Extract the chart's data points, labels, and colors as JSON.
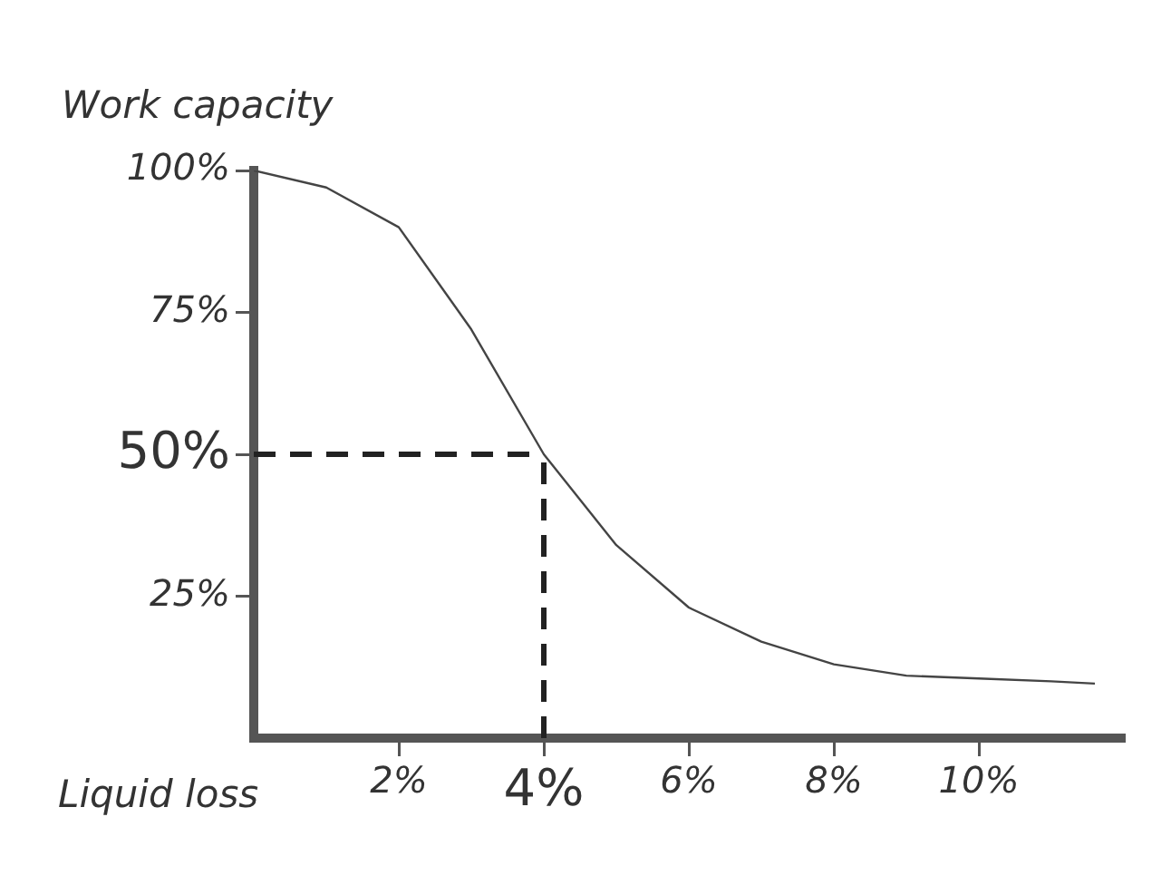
{
  "chart_data": {
    "type": "line",
    "xlabel": "Liquid loss",
    "ylabel": "Work capacity",
    "x": [
      0,
      1,
      2,
      3,
      4,
      5,
      6,
      7,
      8,
      9,
      10,
      11,
      11.6
    ],
    "series": [
      {
        "color": "#444444",
        "values": [
          100,
          97,
          90,
          72,
          50,
          34,
          23,
          17,
          13,
          11,
          10.5,
          10,
          9.6
        ]
      }
    ],
    "xlim": [
      0,
      12
    ],
    "ylim": [
      0,
      100
    ],
    "xticks": [
      {
        "value": 2,
        "label": "2%"
      },
      {
        "value": 4,
        "label": "4%"
      },
      {
        "value": 6,
        "label": "6%"
      },
      {
        "value": 8,
        "label": "8%"
      },
      {
        "value": 10,
        "label": "10%"
      }
    ],
    "yticks": [
      {
        "value": 25,
        "label": "25%"
      },
      {
        "value": 50,
        "label": "50%"
      },
      {
        "value": 75,
        "label": "75%"
      },
      {
        "value": 100,
        "label": "100%"
      }
    ],
    "ref_lines": [
      {
        "axis": "x",
        "value": 4,
        "line_style": "dashed",
        "color": "#222222"
      },
      {
        "axis": "y",
        "value": 50,
        "line_style": "dashed",
        "color": "#222222"
      }
    ],
    "grid": false,
    "legend": false
  }
}
